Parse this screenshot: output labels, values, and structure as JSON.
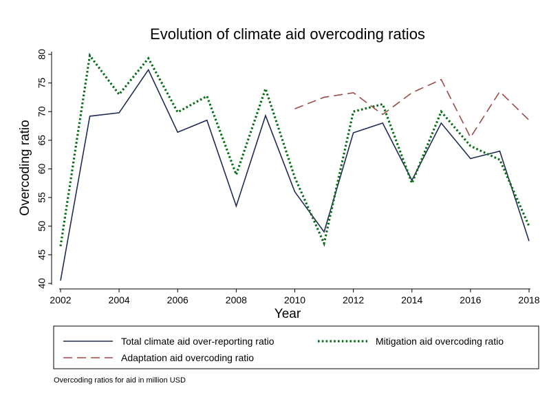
{
  "chart_data": {
    "type": "line",
    "title": "Evolution of climate aid overcoding ratios",
    "xlabel": "Year",
    "ylabel": "Overcoding ratio",
    "note": "Overcoding ratios for aid in million USD",
    "xlim": [
      2002,
      2018
    ],
    "ylim": [
      40,
      80
    ],
    "x_ticks": [
      2002,
      2004,
      2006,
      2008,
      2010,
      2012,
      2014,
      2016,
      2018
    ],
    "y_ticks": [
      40,
      45,
      50,
      55,
      60,
      65,
      70,
      75,
      80
    ],
    "grid": false,
    "legend_position": "bottom",
    "series": [
      {
        "name": "Total climate aid over-reporting ratio",
        "color": "#1f2a55",
        "style": "solid",
        "x": [
          2002,
          2003,
          2004,
          2005,
          2006,
          2007,
          2008,
          2009,
          2010,
          2011,
          2012,
          2013,
          2014,
          2015,
          2016,
          2017,
          2018
        ],
        "values": [
          40.5,
          69.2,
          69.8,
          77.3,
          66.4,
          68.5,
          53.5,
          69.3,
          56.0,
          49.0,
          66.3,
          68.0,
          58.0,
          68.0,
          61.8,
          63.1,
          47.4
        ]
      },
      {
        "name": "Mitigation aid overcoding ratio",
        "color": "#0b6b1a",
        "style": "dotted",
        "x": [
          2002,
          2003,
          2004,
          2005,
          2006,
          2007,
          2008,
          2009,
          2010,
          2011,
          2012,
          2013,
          2014,
          2015,
          2016,
          2017,
          2018
        ],
        "values": [
          46.5,
          79.8,
          73.0,
          79.3,
          69.9,
          72.7,
          59.0,
          74.0,
          58.5,
          47.0,
          70.0,
          71.3,
          57.5,
          70.0,
          64.0,
          61.6,
          50.0
        ]
      },
      {
        "name": "Adaptation aid overcoding ratio",
        "color": "#9b4a46",
        "style": "dashed",
        "x": [
          2010,
          2011,
          2012,
          2013,
          2014,
          2015,
          2016,
          2017,
          2018
        ],
        "values": [
          70.5,
          72.5,
          73.3,
          69.5,
          73.3,
          75.6,
          65.5,
          73.5,
          68.5
        ]
      }
    ]
  }
}
